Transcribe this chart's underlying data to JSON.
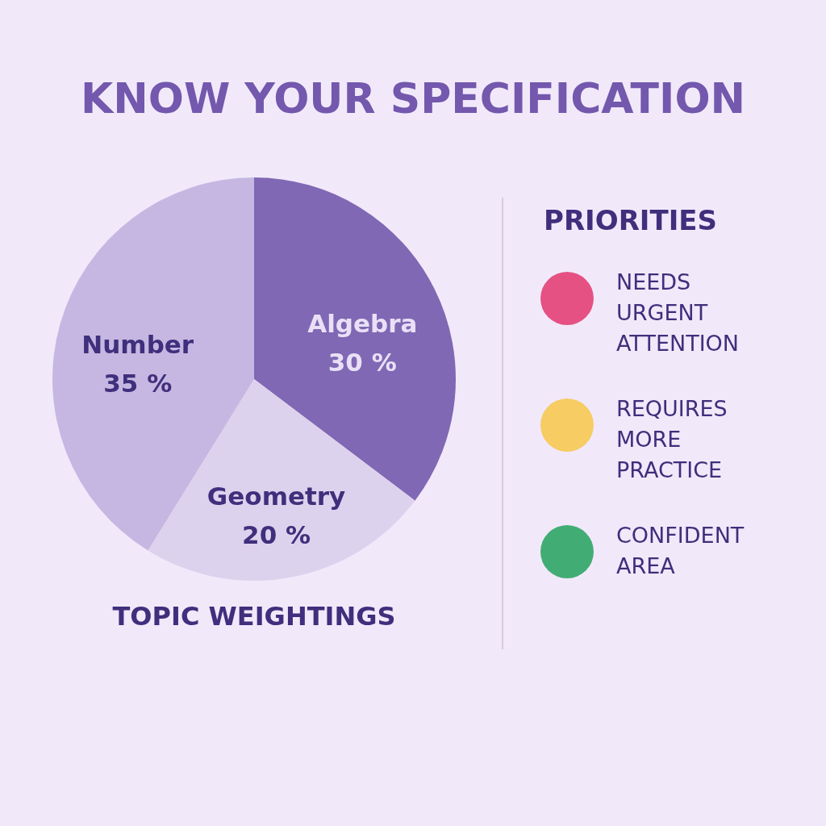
{
  "chart_data": [
    {
      "type": "pie",
      "title": "KNOW YOUR SPECIFICATION",
      "categories": [
        "Algebra",
        "Geometry",
        "Number"
      ],
      "values": [
        30,
        20,
        35
      ],
      "colors": [
        "#8068b4",
        "#ddd2ed",
        "#c5b7e1"
      ],
      "value_labels": [
        "30 %",
        "20 %",
        "35 %"
      ],
      "legend": false,
      "annotations": [
        "TOPIC WEIGHTINGS"
      ]
    },
    {
      "type": "other",
      "title": "PRIORITIES",
      "annotations": [
        "NEEDS\nURGENT\nATTENTION",
        "REQUIRES\nMORE\nPRACTICE",
        "CONFIDENT\nAREA"
      ],
      "colors": [
        "#e55182",
        "#f6cc63",
        "#41ad74"
      ]
    }
  ]
}
